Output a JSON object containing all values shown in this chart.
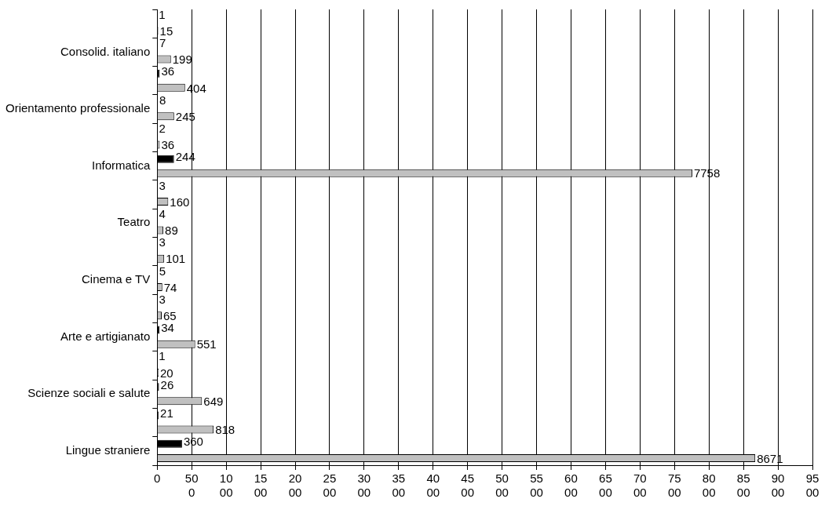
{
  "chart_data": {
    "type": "bar",
    "orientation": "horizontal",
    "categories": [
      null,
      "Consolid. italiano",
      null,
      "Orientamento professionale",
      null,
      "Informatica",
      null,
      "Teatro",
      null,
      "Cinema e TV",
      null,
      "Arte e artigianato",
      null,
      "Scienze sociali e salute",
      null,
      "Lingue straniere"
    ],
    "series": [
      {
        "color": "#000000",
        "values": [
          1,
          7,
          36,
          8,
          2,
          244,
          3,
          4,
          3,
          5,
          3,
          34,
          1,
          26,
          21,
          360
        ]
      },
      {
        "color": "#c0c0c0",
        "values": [
          15,
          199,
          404,
          245,
          36,
          7758,
          160,
          89,
          101,
          74,
          65,
          551,
          20,
          649,
          818,
          8671
        ]
      }
    ],
    "xlim": [
      0,
      9500
    ],
    "xticks": [
      0,
      500,
      1000,
      1500,
      2000,
      2500,
      3000,
      3500,
      4000,
      4500,
      5000,
      5500,
      6000,
      6500,
      7000,
      7500,
      8000,
      8500,
      9000,
      9500
    ],
    "grid": "x",
    "data_labels": true
  }
}
